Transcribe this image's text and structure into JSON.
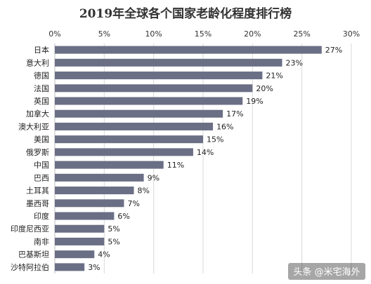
{
  "chart_data": {
    "type": "bar",
    "orientation": "horizontal",
    "title": "2019年全球各个国家老龄化程度排行榜",
    "xlabel": "",
    "ylabel": "",
    "xlim": [
      0,
      30
    ],
    "x_ticks": [
      "0%",
      "5%",
      "10%",
      "15%",
      "20%",
      "25%",
      "30%"
    ],
    "x_tick_values": [
      0,
      5,
      10,
      15,
      20,
      25,
      30
    ],
    "axis_position": "top",
    "grid": true,
    "bar_color": "#6b6f85",
    "categories": [
      "日本",
      "意大利",
      "德国",
      "法国",
      "英国",
      "加拿大",
      "澳大利亚",
      "美国",
      "俄罗斯",
      "中国",
      "巴西",
      "土耳其",
      "墨西哥",
      "印度",
      "印度尼西亚",
      "南非",
      "巴基斯坦",
      "沙特阿拉伯"
    ],
    "values": [
      27,
      23,
      21,
      20,
      19,
      17,
      16,
      15,
      14,
      11,
      9,
      8,
      7,
      6,
      5,
      5,
      4,
      3
    ],
    "value_labels": [
      "27%",
      "23%",
      "21%",
      "20%",
      "19%",
      "17%",
      "16%",
      "15%",
      "14%",
      "11%",
      "9%",
      "8%",
      "7%",
      "6%",
      "5%",
      "5%",
      "4%",
      "3%"
    ]
  },
  "watermark": {
    "text": "头条 @米宅海外"
  }
}
